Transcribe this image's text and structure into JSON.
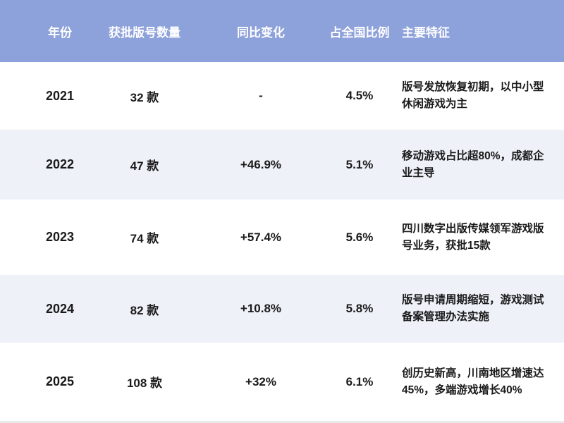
{
  "colors": {
    "header_bg": "#8da1da",
    "header_text": "#ffffff",
    "row_bg": "#ffffff",
    "row_alt_bg": "#eef1f8",
    "text": "#1a1a1a",
    "bottom_line": "#eaeaea"
  },
  "chart_data": {
    "type": "table",
    "title": "",
    "columns": [
      "年份",
      "获批版号数量",
      "同比变化",
      "占全国比例",
      "主要特征"
    ],
    "rows": [
      {
        "year": "2021",
        "count": "32 款",
        "yoy": "-",
        "share": "4.5%",
        "features": "版号发放恢复初期，以中小型休闲游戏为主"
      },
      {
        "year": "2022",
        "count": "47 款",
        "yoy": "+46.9%",
        "share": "5.1%",
        "features": "移动游戏占比超80%，成都企业主导"
      },
      {
        "year": "2023",
        "count": "74 款",
        "yoy": "+57.4%",
        "share": "5.6%",
        "features": "四川数字出版传媒领军游戏版号业务，获批15款"
      },
      {
        "year": "2024",
        "count": "82 款",
        "yoy": "+10.8%",
        "share": "5.8%",
        "features": "版号申请周期缩短，游戏测试备案管理办法实施"
      },
      {
        "year": "2025",
        "count": "108 款",
        "yoy": "+32%",
        "share": "6.1%",
        "features": "创历史新高，川南地区增速达45%，多端游戏增长40%"
      }
    ],
    "numeric": {
      "years": [
        2021,
        2022,
        2023,
        2024,
        2025
      ],
      "approved_counts": [
        32,
        47,
        74,
        82,
        108
      ],
      "yoy_change_pct": [
        null,
        46.9,
        57.4,
        10.8,
        32
      ],
      "national_share_pct": [
        4.5,
        5.1,
        5.6,
        5.8,
        6.1
      ]
    }
  }
}
